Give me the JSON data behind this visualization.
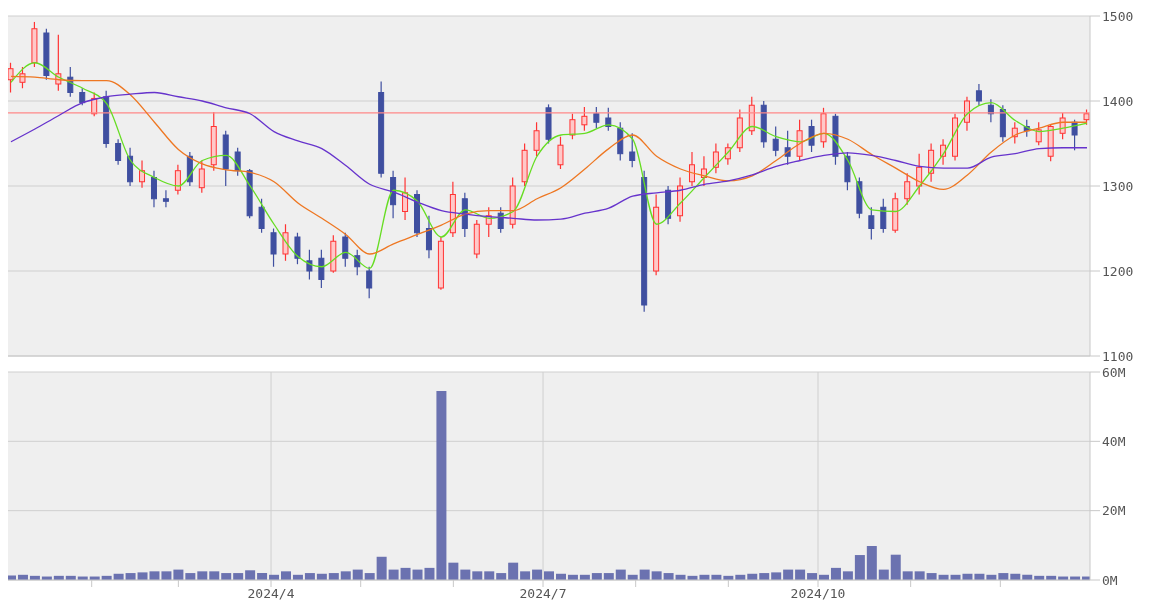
{
  "chart_data": [
    {
      "type": "candlestick",
      "tick_labels": "y",
      "grid": true,
      "x": [
        "2024-01-05",
        "2024-01-09",
        "2024-01-13",
        "2024-01-17",
        "2024-01-21",
        "2024-01-25",
        "2024-01-29",
        "2024-02-02",
        "2024-02-06",
        "2024-02-10",
        "2024-02-14",
        "2024-02-18",
        "2024-02-22",
        "2024-02-26",
        "2024-03-01",
        "2024-03-05",
        "2024-03-09",
        "2024-03-13",
        "2024-03-17",
        "2024-03-21",
        "2024-03-25",
        "2024-03-29",
        "2024-04-02",
        "2024-04-06",
        "2024-04-10",
        "2024-04-14",
        "2024-04-18",
        "2024-04-22",
        "2024-04-26",
        "2024-04-30",
        "2024-05-04",
        "2024-05-08",
        "2024-05-12",
        "2024-05-16",
        "2024-05-20",
        "2024-05-24",
        "2024-05-28",
        "2024-06-01",
        "2024-06-05",
        "2024-06-09",
        "2024-06-13",
        "2024-06-17",
        "2024-06-21",
        "2024-06-25",
        "2024-06-29",
        "2024-07-03",
        "2024-07-07",
        "2024-07-11",
        "2024-07-15",
        "2024-07-19",
        "2024-07-23",
        "2024-07-27",
        "2024-07-31",
        "2024-08-04",
        "2024-08-08",
        "2024-08-12",
        "2024-08-16",
        "2024-08-20",
        "2024-08-24",
        "2024-08-28",
        "2024-09-01",
        "2024-09-05",
        "2024-09-09",
        "2024-09-13",
        "2024-09-17",
        "2024-09-21",
        "2024-09-25",
        "2024-09-29",
        "2024-10-03",
        "2024-10-07",
        "2024-10-11",
        "2024-10-15",
        "2024-10-19",
        "2024-10-23",
        "2024-10-27",
        "2024-10-31",
        "2024-11-04",
        "2024-11-08",
        "2024-11-12",
        "2024-11-16",
        "2024-11-20",
        "2024-11-24",
        "2024-11-28",
        "2024-12-02",
        "2024-12-06",
        "2024-12-10",
        "2024-12-14",
        "2024-12-18",
        "2024-12-22",
        "2024-12-26",
        "2024-12-30"
      ],
      "ohlc": [
        [
          1425,
          1445,
          1410,
          1438
        ],
        [
          1422,
          1440,
          1415,
          1432
        ],
        [
          1445,
          1493,
          1440,
          1485
        ],
        [
          1480,
          1485,
          1425,
          1430
        ],
        [
          1420,
          1478,
          1412,
          1432
        ],
        [
          1428,
          1440,
          1405,
          1410
        ],
        [
          1410,
          1415,
          1395,
          1398
        ],
        [
          1385,
          1410,
          1382,
          1403
        ],
        [
          1405,
          1412,
          1345,
          1350
        ],
        [
          1350,
          1355,
          1325,
          1330
        ],
        [
          1335,
          1345,
          1300,
          1305
        ],
        [
          1305,
          1330,
          1298,
          1318
        ],
        [
          1310,
          1318,
          1275,
          1285
        ],
        [
          1285,
          1295,
          1275,
          1282
        ],
        [
          1295,
          1325,
          1290,
          1318
        ],
        [
          1335,
          1340,
          1300,
          1305
        ],
        [
          1298,
          1330,
          1292,
          1320
        ],
        [
          1325,
          1387,
          1318,
          1370
        ],
        [
          1360,
          1365,
          1300,
          1320
        ],
        [
          1340,
          1345,
          1312,
          1318
        ],
        [
          1318,
          1320,
          1262,
          1265
        ],
        [
          1275,
          1285,
          1245,
          1250
        ],
        [
          1245,
          1250,
          1205,
          1220
        ],
        [
          1220,
          1255,
          1212,
          1245
        ],
        [
          1240,
          1245,
          1208,
          1215
        ],
        [
          1212,
          1225,
          1190,
          1200
        ],
        [
          1215,
          1225,
          1180,
          1190
        ],
        [
          1200,
          1242,
          1198,
          1235
        ],
        [
          1240,
          1245,
          1205,
          1215
        ],
        [
          1218,
          1225,
          1195,
          1205
        ],
        [
          1200,
          1205,
          1168,
          1180
        ],
        [
          1410,
          1423,
          1310,
          1315
        ],
        [
          1310,
          1318,
          1262,
          1278
        ],
        [
          1270,
          1310,
          1260,
          1292
        ],
        [
          1290,
          1295,
          1240,
          1245
        ],
        [
          1250,
          1265,
          1215,
          1225
        ],
        [
          1180,
          1240,
          1178,
          1235
        ],
        [
          1245,
          1305,
          1240,
          1290
        ],
        [
          1285,
          1292,
          1240,
          1250
        ],
        [
          1220,
          1260,
          1215,
          1255
        ],
        [
          1255,
          1275,
          1240,
          1265
        ],
        [
          1268,
          1275,
          1245,
          1250
        ],
        [
          1255,
          1310,
          1250,
          1300
        ],
        [
          1305,
          1350,
          1300,
          1342
        ],
        [
          1342,
          1375,
          1335,
          1365
        ],
        [
          1392,
          1396,
          1350,
          1355
        ],
        [
          1325,
          1358,
          1320,
          1348
        ],
        [
          1360,
          1385,
          1355,
          1378
        ],
        [
          1372,
          1393,
          1365,
          1382
        ],
        [
          1385,
          1393,
          1368,
          1375
        ],
        [
          1380,
          1392,
          1365,
          1370
        ],
        [
          1368,
          1375,
          1330,
          1338
        ],
        [
          1340,
          1362,
          1322,
          1330
        ],
        [
          1310,
          1318,
          1152,
          1160
        ],
        [
          1200,
          1290,
          1195,
          1275
        ],
        [
          1295,
          1300,
          1255,
          1262
        ],
        [
          1265,
          1310,
          1258,
          1300
        ],
        [
          1305,
          1340,
          1300,
          1325
        ],
        [
          1310,
          1335,
          1300,
          1320
        ],
        [
          1322,
          1350,
          1315,
          1340
        ],
        [
          1332,
          1350,
          1325,
          1345
        ],
        [
          1345,
          1390,
          1340,
          1380
        ],
        [
          1365,
          1405,
          1360,
          1395
        ],
        [
          1395,
          1400,
          1345,
          1352
        ],
        [
          1355,
          1370,
          1335,
          1342
        ],
        [
          1345,
          1365,
          1325,
          1335
        ],
        [
          1335,
          1378,
          1330,
          1365
        ],
        [
          1370,
          1378,
          1340,
          1348
        ],
        [
          1352,
          1392,
          1345,
          1385
        ],
        [
          1382,
          1385,
          1325,
          1335
        ],
        [
          1335,
          1340,
          1295,
          1305
        ],
        [
          1305,
          1310,
          1262,
          1268
        ],
        [
          1265,
          1275,
          1237,
          1250
        ],
        [
          1275,
          1285,
          1245,
          1250
        ],
        [
          1248,
          1292,
          1245,
          1285
        ],
        [
          1285,
          1315,
          1278,
          1305
        ],
        [
          1300,
          1338,
          1290,
          1322
        ],
        [
          1315,
          1350,
          1305,
          1342
        ],
        [
          1335,
          1355,
          1325,
          1348
        ],
        [
          1335,
          1385,
          1330,
          1380
        ],
        [
          1375,
          1405,
          1365,
          1400
        ],
        [
          1412,
          1420,
          1395,
          1400
        ],
        [
          1395,
          1402,
          1375,
          1385
        ],
        [
          1390,
          1395,
          1352,
          1358
        ],
        [
          1358,
          1375,
          1350,
          1368
        ],
        [
          1370,
          1378,
          1358,
          1365
        ],
        [
          1352,
          1375,
          1348,
          1366
        ],
        [
          1335,
          1372,
          1329,
          1370
        ],
        [
          1362,
          1386,
          1355,
          1380
        ],
        [
          1375,
          1378,
          1342,
          1360
        ],
        [
          1378,
          1390,
          1372,
          1385
        ]
      ],
      "colors": [
        "#ff3333",
        "#ff3333",
        "#ff3333",
        "#3f4fa0",
        "#ff3333",
        "#3f4fa0",
        "#3f4fa0",
        "#ff3333",
        "#3f4fa0",
        "#3f4fa0",
        "#3f4fa0",
        "#ff3333",
        "#3f4fa0",
        "#3f4fa0",
        "#ff3333",
        "#3f4fa0",
        "#ff3333",
        "#ff3333",
        "#3f4fa0",
        "#3f4fa0",
        "#3f4fa0",
        "#3f4fa0",
        "#3f4fa0",
        "#ff3333",
        "#3f4fa0",
        "#3f4fa0",
        "#3f4fa0",
        "#ff3333",
        "#3f4fa0",
        "#3f4fa0",
        "#3f4fa0",
        "#3f4fa0",
        "#3f4fa0",
        "#ff3333",
        "#3f4fa0",
        "#3f4fa0",
        "#ff3333",
        "#ff3333",
        "#3f4fa0",
        "#ff3333",
        "#ff3333",
        "#3f4fa0",
        "#ff3333",
        "#ff3333",
        "#ff3333",
        "#3f4fa0",
        "#ff3333",
        "#ff3333",
        "#ff3333",
        "#3f4fa0",
        "#3f4fa0",
        "#3f4fa0",
        "#3f4fa0",
        "#3f4fa0",
        "#ff3333",
        "#3f4fa0",
        "#ff3333",
        "#ff3333",
        "#ff3333",
        "#ff3333",
        "#ff3333",
        "#ff3333",
        "#ff3333",
        "#3f4fa0",
        "#3f4fa0",
        "#3f4fa0",
        "#ff3333",
        "#3f4fa0",
        "#ff3333",
        "#3f4fa0",
        "#3f4fa0",
        "#3f4fa0",
        "#3f4fa0",
        "#3f4fa0",
        "#ff3333",
        "#ff3333",
        "#ff3333",
        "#ff3333",
        "#ff3333",
        "#ff3333",
        "#ff3333",
        "#3f4fa0",
        "#3f4fa0",
        "#3f4fa0",
        "#ff3333",
        "#3f4fa0",
        "#ff3333",
        "#ff3333",
        "#ff3333",
        "#3f4fa0",
        "#ff3333"
      ],
      "series": [
        {
          "type": "line",
          "color": "#66dd22",
          "x": [
            "2024-01-05",
            "2024-01-13",
            "2024-01-21",
            "2024-01-29",
            "2024-02-06",
            "2024-02-14",
            "2024-02-22",
            "2024-03-01",
            "2024-03-09",
            "2024-03-17",
            "2024-03-25",
            "2024-04-02",
            "2024-04-10",
            "2024-04-18",
            "2024-04-26",
            "2024-05-04",
            "2024-05-12",
            "2024-05-20",
            "2024-05-28",
            "2024-06-05",
            "2024-06-13",
            "2024-06-21",
            "2024-06-29",
            "2024-07-07",
            "2024-07-15",
            "2024-07-23",
            "2024-07-31",
            "2024-08-08",
            "2024-08-16",
            "2024-08-24",
            "2024-09-01",
            "2024-09-09",
            "2024-09-17",
            "2024-09-25",
            "2024-10-03",
            "2024-10-11",
            "2024-10-19",
            "2024-10-27",
            "2024-11-04",
            "2024-11-12",
            "2024-11-20",
            "2024-11-28",
            "2024-12-06",
            "2024-12-14",
            "2024-12-22",
            "2024-12-30"
          ],
          "values": [
            1422,
            1445,
            1428,
            1415,
            1397,
            1330,
            1310,
            1300,
            1330,
            1336,
            1300,
            1255,
            1217,
            1205,
            1222,
            1203,
            1295,
            1282,
            1240,
            1272,
            1262,
            1270,
            1335,
            1360,
            1362,
            1372,
            1355,
            1255,
            1280,
            1310,
            1340,
            1370,
            1358,
            1352,
            1362,
            1330,
            1272,
            1270,
            1300,
            1338,
            1385,
            1398,
            1377,
            1364,
            1368,
            1374
          ]
        },
        {
          "type": "line",
          "color": "#ee7722",
          "x": [
            "2024-01-05",
            "2024-01-13",
            "2024-01-21",
            "2024-01-29",
            "2024-02-06",
            "2024-02-14",
            "2024-02-22",
            "2024-03-01",
            "2024-03-09",
            "2024-03-17",
            "2024-03-25",
            "2024-04-02",
            "2024-04-10",
            "2024-04-18",
            "2024-04-26",
            "2024-05-04",
            "2024-05-12",
            "2024-05-20",
            "2024-05-28",
            "2024-06-05",
            "2024-06-13",
            "2024-06-21",
            "2024-06-29",
            "2024-07-07",
            "2024-07-15",
            "2024-07-23",
            "2024-07-31",
            "2024-08-08",
            "2024-08-16",
            "2024-08-24",
            "2024-09-01",
            "2024-09-09",
            "2024-09-17",
            "2024-09-25",
            "2024-10-03",
            "2024-10-11",
            "2024-10-19",
            "2024-10-27",
            "2024-11-04",
            "2024-11-12",
            "2024-11-20",
            "2024-11-28",
            "2024-12-06",
            "2024-12-14",
            "2024-12-22",
            "2024-12-30"
          ],
          "values": [
            1429,
            1428,
            1425,
            1424,
            1424,
            1407,
            1375,
            1343,
            1326,
            1319,
            1316,
            1305,
            1280,
            1262,
            1243,
            1220,
            1232,
            1243,
            1254,
            1267,
            1271,
            1271,
            1285,
            1298,
            1320,
            1344,
            1360,
            1335,
            1320,
            1312,
            1306,
            1312,
            1330,
            1350,
            1362,
            1355,
            1337,
            1321,
            1305,
            1296,
            1313,
            1340,
            1360,
            1368,
            1375,
            1375
          ]
        },
        {
          "type": "line",
          "color": "#6633cc",
          "x": [
            "2024-01-05",
            "2024-01-13",
            "2024-01-21",
            "2024-01-29",
            "2024-02-06",
            "2024-02-14",
            "2024-02-22",
            "2024-03-01",
            "2024-03-09",
            "2024-03-17",
            "2024-03-25",
            "2024-04-02",
            "2024-04-10",
            "2024-04-18",
            "2024-04-26",
            "2024-05-04",
            "2024-05-12",
            "2024-05-20",
            "2024-05-28",
            "2024-06-05",
            "2024-06-13",
            "2024-06-21",
            "2024-06-29",
            "2024-07-07",
            "2024-07-15",
            "2024-07-23",
            "2024-07-31",
            "2024-08-08",
            "2024-08-16",
            "2024-08-24",
            "2024-09-01",
            "2024-09-09",
            "2024-09-17",
            "2024-09-25",
            "2024-10-03",
            "2024-10-11",
            "2024-10-19",
            "2024-10-27",
            "2024-11-04",
            "2024-11-12",
            "2024-11-20",
            "2024-11-28",
            "2024-12-06",
            "2024-12-14",
            "2024-12-22",
            "2024-12-30"
          ],
          "values": [
            1352,
            1367,
            1383,
            1398,
            1405,
            1408,
            1410,
            1405,
            1400,
            1392,
            1385,
            1364,
            1353,
            1344,
            1324,
            1302,
            1293,
            1281,
            1271,
            1267,
            1264,
            1262,
            1260,
            1261,
            1268,
            1274,
            1288,
            1292,
            1295,
            1302,
            1306,
            1313,
            1323,
            1330,
            1336,
            1339,
            1336,
            1330,
            1323,
            1321,
            1321,
            1334,
            1338,
            1344,
            1345,
            1345
          ]
        }
      ],
      "xlim": [
        "2024-01-04",
        "2024-12-31"
      ],
      "xticks": [
        {
          "value": "2024-04-01",
          "label": null
        },
        {
          "value": "2024-07-01",
          "label": null
        },
        {
          "value": "2024-10-01",
          "label": null
        }
      ],
      "ylim": [
        1100,
        1500
      ],
      "yticks": [
        1100,
        1200,
        1300,
        1400,
        1500
      ],
      "ref_lines": [
        {
          "axis": "y",
          "value": 1386,
          "color": "#ff8888"
        }
      ]
    },
    {
      "type": "bar",
      "color": "#6b72b0",
      "grid": true,
      "x": [
        "2024-01-05",
        "2024-01-09",
        "2024-01-13",
        "2024-01-17",
        "2024-01-21",
        "2024-01-25",
        "2024-01-29",
        "2024-02-02",
        "2024-02-06",
        "2024-02-10",
        "2024-02-14",
        "2024-02-18",
        "2024-02-22",
        "2024-02-26",
        "2024-03-01",
        "2024-03-05",
        "2024-03-09",
        "2024-03-13",
        "2024-03-17",
        "2024-03-21",
        "2024-03-25",
        "2024-03-29",
        "2024-04-02",
        "2024-04-06",
        "2024-04-10",
        "2024-04-14",
        "2024-04-18",
        "2024-04-22",
        "2024-04-26",
        "2024-04-30",
        "2024-05-04",
        "2024-05-08",
        "2024-05-12",
        "2024-05-16",
        "2024-05-20",
        "2024-05-24",
        "2024-05-28",
        "2024-06-01",
        "2024-06-05",
        "2024-06-09",
        "2024-06-13",
        "2024-06-17",
        "2024-06-21",
        "2024-06-25",
        "2024-06-29",
        "2024-07-03",
        "2024-07-07",
        "2024-07-11",
        "2024-07-15",
        "2024-07-19",
        "2024-07-23",
        "2024-07-27",
        "2024-07-31",
        "2024-08-04",
        "2024-08-08",
        "2024-08-12",
        "2024-08-16",
        "2024-08-20",
        "2024-08-24",
        "2024-08-28",
        "2024-09-01",
        "2024-09-05",
        "2024-09-09",
        "2024-09-13",
        "2024-09-17",
        "2024-09-21",
        "2024-09-25",
        "2024-09-29",
        "2024-10-03",
        "2024-10-07",
        "2024-10-11",
        "2024-10-15",
        "2024-10-19",
        "2024-10-23",
        "2024-10-27",
        "2024-10-31",
        "2024-11-04",
        "2024-11-08",
        "2024-11-12",
        "2024-11-16",
        "2024-11-20",
        "2024-11-24",
        "2024-11-28",
        "2024-12-02",
        "2024-12-06",
        "2024-12-10",
        "2024-12-14",
        "2024-12-18",
        "2024-12-22",
        "2024-12-26",
        "2024-12-30"
      ],
      "values": [
        1.3,
        1.5,
        1.2,
        1.0,
        1.2,
        1.2,
        1.0,
        1.0,
        1.2,
        1.8,
        2.0,
        2.2,
        2.5,
        2.5,
        3.0,
        2.0,
        2.5,
        2.5,
        2.0,
        2.0,
        2.8,
        2.0,
        1.5,
        2.5,
        1.5,
        2.0,
        1.8,
        2.0,
        2.5,
        3.0,
        2.0,
        6.7,
        3.0,
        3.5,
        3.0,
        3.5,
        54.5,
        5.0,
        3.0,
        2.5,
        2.5,
        2.0,
        5.0,
        2.5,
        3.0,
        2.5,
        1.8,
        1.5,
        1.5,
        2.0,
        2.0,
        3.0,
        1.5,
        3.0,
        2.5,
        2.0,
        1.5,
        1.2,
        1.5,
        1.5,
        1.2,
        1.5,
        1.8,
        2.0,
        2.2,
        3.0,
        3.0,
        2.0,
        1.5,
        3.5,
        2.5,
        7.2,
        9.8,
        3.0,
        7.3,
        2.5,
        2.5,
        2.0,
        1.5,
        1.5,
        1.8,
        1.8,
        1.5,
        2.0,
        1.8,
        1.5,
        1.2,
        1.2,
        1.0,
        1.0,
        1.0
      ],
      "xlim": [
        "2024-01-04",
        "2024-12-31"
      ],
      "xticks": [
        {
          "value": "2024-02-01",
          "label": null
        },
        {
          "value": "2024-03-01",
          "label": null
        },
        {
          "value": "2024-04-01",
          "label": "2024/4"
        },
        {
          "value": "2024-05-01",
          "label": null
        },
        {
          "value": "2024-06-01",
          "label": null
        },
        {
          "value": "2024-07-01",
          "label": "2024/7"
        },
        {
          "value": "2024-08-01",
          "label": null
        },
        {
          "value": "2024-09-01",
          "label": null
        },
        {
          "value": "2024-10-01",
          "label": "2024/10"
        },
        {
          "value": "2024-11-01",
          "label": null
        },
        {
          "value": "2024-12-01",
          "label": null
        }
      ],
      "ylim": [
        0,
        60
      ],
      "yticks": [
        {
          "value": 0,
          "label": "0M"
        },
        {
          "value": 20,
          "label": "20M"
        },
        {
          "value": 40,
          "label": "40M"
        },
        {
          "value": 60,
          "label": "60M"
        }
      ]
    }
  ]
}
